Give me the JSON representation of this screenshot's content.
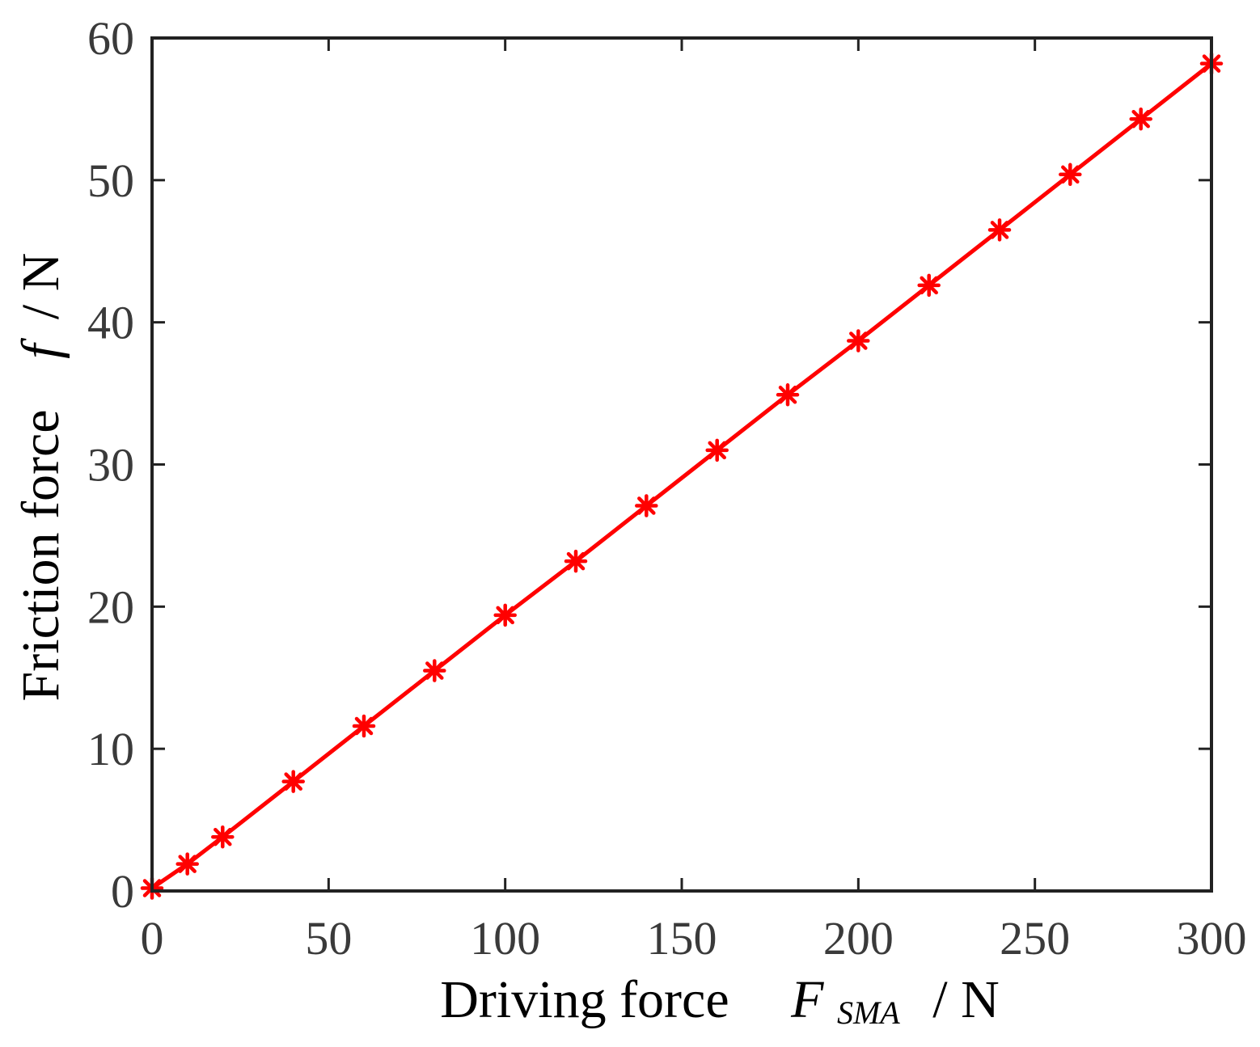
{
  "chart_data": {
    "type": "line",
    "title": "",
    "xlabel": {
      "prefix": "Driving force",
      "symbol": "F",
      "subscript": "SMA",
      "unit": "/ N"
    },
    "ylabel": {
      "prefix": "Friction force",
      "symbol": "f",
      "unit": "/ N"
    },
    "xlim": [
      0,
      300
    ],
    "ylim": [
      0,
      60
    ],
    "xticks": [
      0,
      50,
      100,
      150,
      200,
      250,
      300
    ],
    "yticks": [
      0,
      10,
      20,
      30,
      40,
      50,
      60
    ],
    "grid": false,
    "legend": "none",
    "series": [
      {
        "color": "#ff0000",
        "marker": "asterisk",
        "x": [
          0,
          10,
          20,
          40,
          60,
          80,
          100,
          120,
          140,
          160,
          180,
          200,
          220,
          240,
          260,
          280,
          300
        ],
        "y": [
          0.2,
          1.9,
          3.8,
          7.7,
          11.6,
          15.5,
          19.4,
          23.2,
          27.1,
          31.0,
          34.9,
          38.7,
          42.6,
          46.5,
          50.4,
          54.3,
          58.2
        ]
      }
    ]
  }
}
